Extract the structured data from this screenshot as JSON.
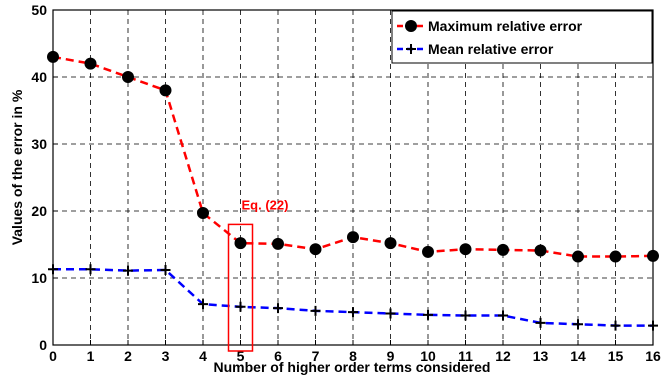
{
  "chart_data": {
    "type": "line",
    "xlabel": "Number of higher order terms considered",
    "ylabel": "Values of the error in %",
    "x": [
      0,
      1,
      2,
      3,
      4,
      5,
      6,
      7,
      8,
      9,
      10,
      11,
      12,
      13,
      14,
      15,
      16
    ],
    "xlim": [
      0,
      16
    ],
    "ylim": [
      0,
      50
    ],
    "xticks": [
      "0",
      "1",
      "2",
      "3",
      "4",
      "5",
      "6",
      "7",
      "8",
      "9",
      "10",
      "11",
      "12",
      "13",
      "14",
      "15",
      "16"
    ],
    "yticks": [
      "0",
      "10",
      "20",
      "30",
      "40",
      "50"
    ],
    "grid": true,
    "legend_position": "top-right",
    "series": [
      {
        "name": "Maximum relative error",
        "color": "#ff0000",
        "marker_color": "#000000",
        "marker": "circle",
        "line_style": "dashed",
        "values": [
          43,
          42,
          40,
          38,
          19.7,
          15.2,
          15.1,
          14.3,
          16.1,
          15.2,
          13.9,
          14.3,
          14.2,
          14.1,
          13.2,
          13.2,
          13.3
        ]
      },
      {
        "name": "Mean relative error",
        "color": "#0000ff",
        "marker_color": "#000000",
        "marker": "plus",
        "line_style": "dashed",
        "values": [
          11.3,
          11.3,
          11.1,
          11.2,
          6.1,
          5.7,
          5.5,
          5.1,
          4.9,
          4.7,
          4.5,
          4.4,
          4.4,
          3.3,
          3.1,
          2.9,
          2.9
        ]
      }
    ],
    "annotation": {
      "text": "Eq. (22)",
      "color": "#ff0000",
      "x": 5,
      "y_range": [
        0,
        18
      ]
    }
  }
}
